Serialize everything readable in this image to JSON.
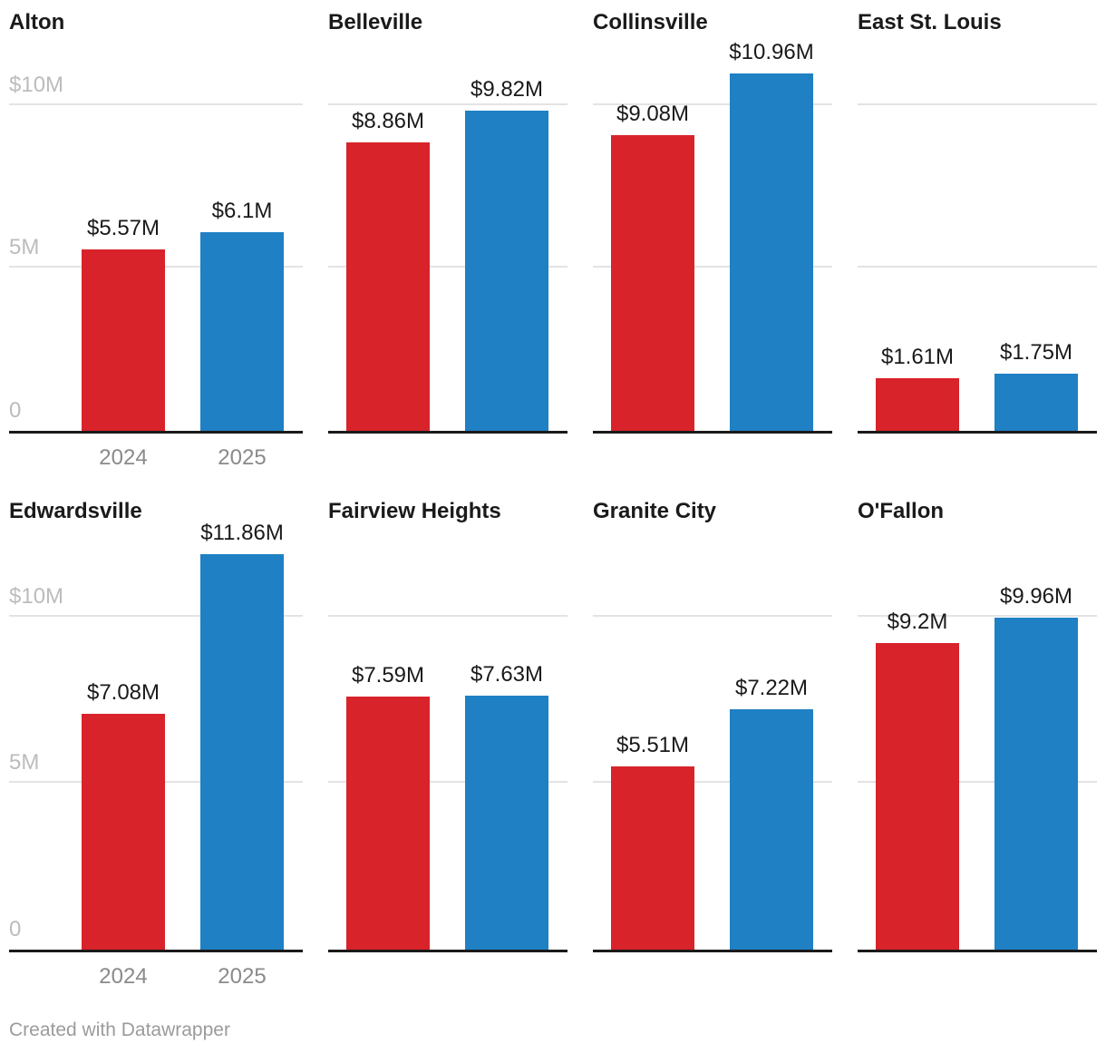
{
  "chart_data": {
    "type": "bar",
    "layout": "small-multiples-4x2",
    "categories": [
      "2024",
      "2025"
    ],
    "series_colors": {
      "2024": "#d8232a",
      "2025": "#1f80c4"
    },
    "y_axis": {
      "ticks": [
        "$10M",
        "5M",
        "0"
      ],
      "tick_values": [
        10,
        5,
        0
      ],
      "ylim": [
        0,
        12
      ],
      "grid": true
    },
    "x_tick_labels": [
      "2024",
      "2025"
    ],
    "panels": [
      {
        "title": "Alton",
        "values": [
          5.57,
          6.1
        ],
        "labels": [
          "$5.57M",
          "$6.1M"
        ]
      },
      {
        "title": "Belleville",
        "values": [
          8.86,
          9.82
        ],
        "labels": [
          "$8.86M",
          "$9.82M"
        ]
      },
      {
        "title": "Collinsville",
        "values": [
          9.08,
          10.96
        ],
        "labels": [
          "$9.08M",
          "$10.96M"
        ]
      },
      {
        "title": "East St. Louis",
        "values": [
          1.61,
          1.75
        ],
        "labels": [
          "$1.61M",
          "$1.75M"
        ]
      },
      {
        "title": "Edwardsville",
        "values": [
          7.08,
          11.86
        ],
        "labels": [
          "$7.08M",
          "$11.86M"
        ]
      },
      {
        "title": "Fairview Heights",
        "values": [
          7.59,
          7.63
        ],
        "labels": [
          "$7.59M",
          "$7.63M"
        ]
      },
      {
        "title": "Granite City",
        "values": [
          5.51,
          7.22
        ],
        "labels": [
          "$5.51M",
          "$7.22M"
        ]
      },
      {
        "title": "O'Fallon",
        "values": [
          9.2,
          9.96
        ],
        "labels": [
          "$9.2M",
          "$9.96M"
        ]
      }
    ]
  },
  "footer": {
    "credit": "Created with Datawrapper"
  }
}
